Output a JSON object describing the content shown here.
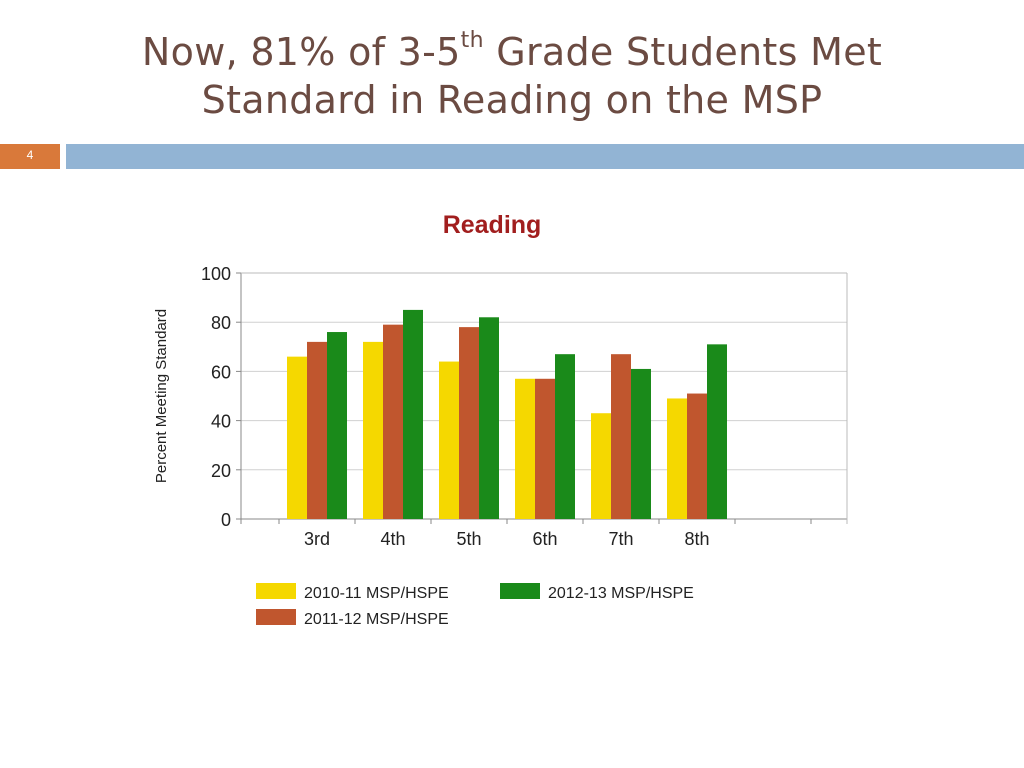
{
  "slide": {
    "title_line1_prefix": "Now, 81% of 3-5",
    "title_line1_sup": "th",
    "title_line1_suffix": " Grade Students Met",
    "title_line2": "Standard in Reading on the MSP",
    "page_number": "4"
  },
  "colors": {
    "title_text": "#6b4b42",
    "page_box": "#d9793a",
    "header_band": "#92b4d4",
    "chart_title": "#a11e1e",
    "grid": "#d0d0d0"
  },
  "chart_data": {
    "type": "bar",
    "title": "Reading",
    "xlabel": "",
    "ylabel": "Percent Meeting Standard",
    "ylim": [
      0,
      100
    ],
    "yticks": [
      0,
      20,
      40,
      60,
      80,
      100
    ],
    "grid": true,
    "legend_position": "bottom",
    "categories": [
      "3rd",
      "4th",
      "5th",
      "6th",
      "7th",
      "8th"
    ],
    "series": [
      {
        "name": "2010-11 MSP/HSPE",
        "color": "#f5d800",
        "values": [
          66,
          72,
          64,
          57,
          43,
          49
        ]
      },
      {
        "name": "2011-12 MSP/HSPE",
        "color": "#c0562e",
        "values": [
          72,
          79,
          78,
          57,
          67,
          51
        ]
      },
      {
        "name": "2012-13 MSP/HSPE",
        "color": "#1a8a1a",
        "values": [
          76,
          85,
          82,
          67,
          61,
          71
        ]
      }
    ]
  }
}
